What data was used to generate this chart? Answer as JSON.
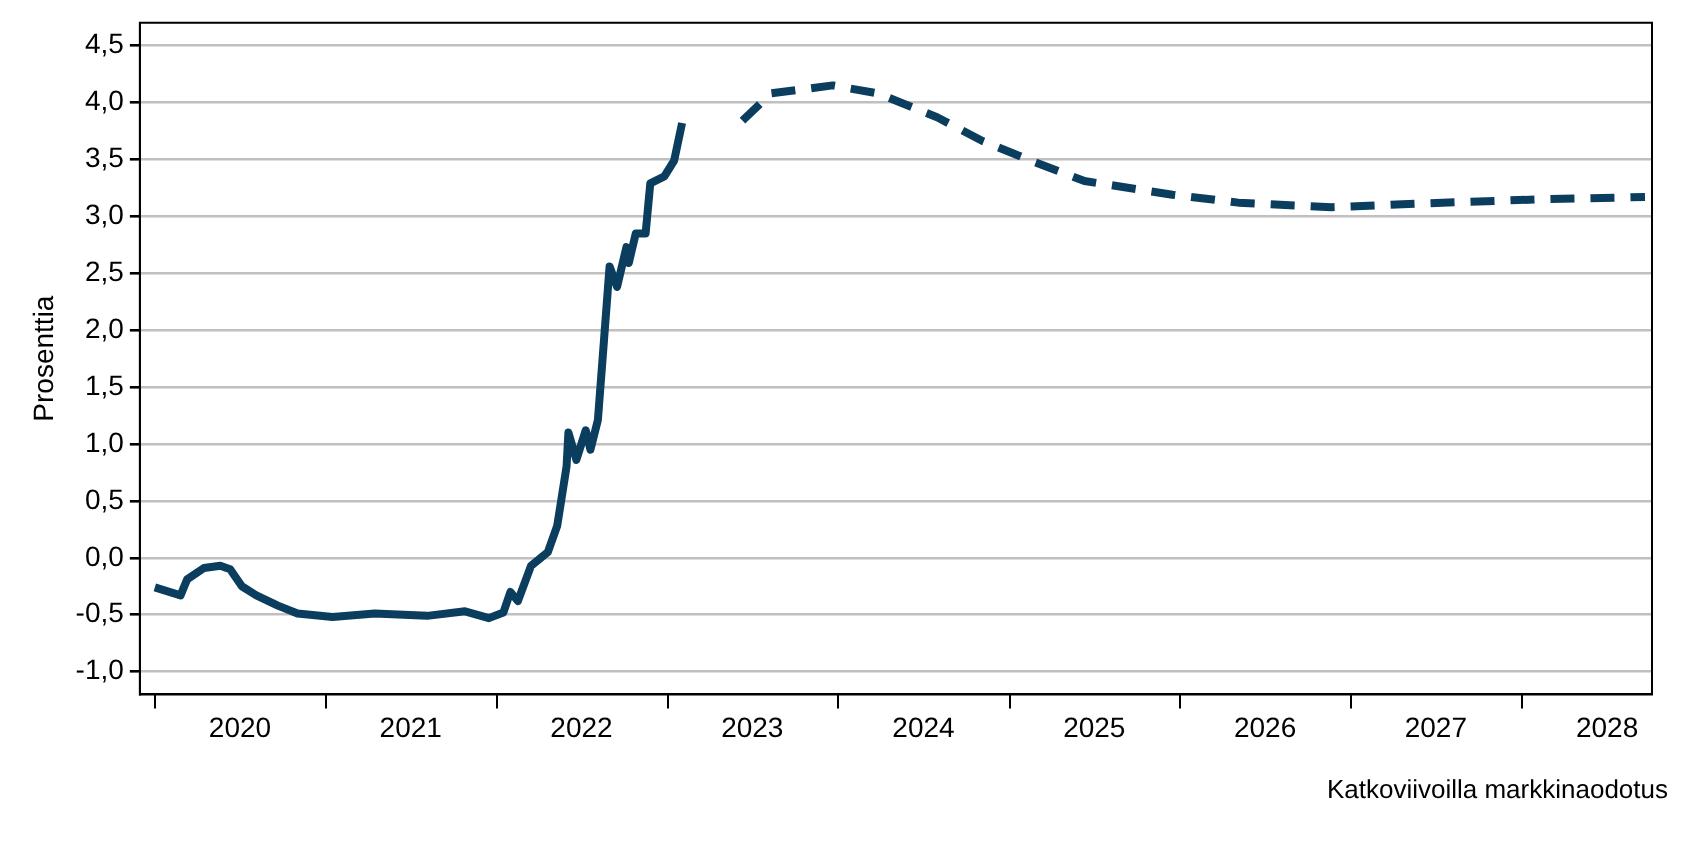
{
  "chart_data": {
    "type": "line",
    "ylabel": "Prosenttia",
    "annotations": [
      "Katkoviivoilla markkinaodotus"
    ],
    "xlim": [
      "2019-11-30",
      "2028-10-05"
    ],
    "xticks": [
      {
        "value": "2020-01-01",
        "label": null
      },
      {
        "value": "2020-07-01",
        "label": "2020"
      },
      {
        "value": "2021-01-01",
        "label": null
      },
      {
        "value": "2021-07-01",
        "label": "2021"
      },
      {
        "value": "2022-01-01",
        "label": null
      },
      {
        "value": "2022-07-01",
        "label": "2022"
      },
      {
        "value": "2023-01-01",
        "label": null
      },
      {
        "value": "2023-07-01",
        "label": "2023"
      },
      {
        "value": "2024-01-01",
        "label": null
      },
      {
        "value": "2024-07-01",
        "label": "2024"
      },
      {
        "value": "2025-01-01",
        "label": null
      },
      {
        "value": "2025-07-01",
        "label": "2025"
      },
      {
        "value": "2026-01-01",
        "label": null
      },
      {
        "value": "2026-07-01",
        "label": "2026"
      },
      {
        "value": "2027-01-01",
        "label": null
      },
      {
        "value": "2027-07-01",
        "label": "2027"
      },
      {
        "value": "2028-01-01",
        "label": null
      },
      {
        "value": "2028-07-01",
        "label": "2028"
      }
    ],
    "ylim": [
      -1.2,
      4.7
    ],
    "yticks": [
      {
        "value": -1,
        "label": "-1,0"
      },
      {
        "value": -0.5,
        "label": "-0,5"
      },
      {
        "value": 0,
        "label": "0,0"
      },
      {
        "value": 0.5,
        "label": "0,5"
      },
      {
        "value": 1,
        "label": "1,0"
      },
      {
        "value": 1.5,
        "label": "1,5"
      },
      {
        "value": 2,
        "label": "2,0"
      },
      {
        "value": 2.5,
        "label": "2,5"
      },
      {
        "value": 3,
        "label": "3,0"
      },
      {
        "value": 3.5,
        "label": "3,5"
      },
      {
        "value": 4,
        "label": "4,0"
      },
      {
        "value": 4.5,
        "label": "4,5"
      }
    ],
    "grid": "y",
    "legend": false,
    "marker": "none",
    "series": [
      {
        "color": "#0b3d5e",
        "line_style": "solid",
        "x": [
          "2020-01-01",
          "2020-02-25",
          "2020-03-10",
          "2020-04-15",
          "2020-05-20",
          "2020-06-10",
          "2020-07-05",
          "2020-08-05",
          "2020-09-20",
          "2020-11-01",
          "2021-01-15",
          "2021-04-15",
          "2021-08-05",
          "2021-10-25",
          "2021-12-15",
          "2022-01-15",
          "2022-01-30",
          "2022-02-15",
          "2022-03-15",
          "2022-04-20",
          "2022-05-10",
          "2022-05-30",
          "2022-06-03",
          "2022-06-20",
          "2022-07-10",
          "2022-07-20",
          "2022-08-05",
          "2022-08-18",
          "2022-08-30",
          "2022-09-15",
          "2022-10-05",
          "2022-10-10",
          "2022-10-25",
          "2022-11-15",
          "2022-11-25",
          "2022-12-25",
          "2023-01-15",
          "2023-02-01"
        ],
        "values": [
          -0.26,
          -0.33,
          -0.19,
          -0.09,
          -0.07,
          -0.1,
          -0.25,
          -0.33,
          -0.42,
          -0.49,
          -0.52,
          -0.49,
          -0.51,
          -0.47,
          -0.53,
          -0.48,
          -0.3,
          -0.38,
          -0.07,
          0.05,
          0.28,
          0.8,
          1.1,
          0.86,
          1.12,
          0.95,
          1.21,
          1.91,
          2.56,
          2.38,
          2.73,
          2.59,
          2.85,
          2.85,
          3.29,
          3.35,
          3.49,
          3.82
        ]
      },
      {
        "color": "#0b3d5e",
        "line_style": "dashed",
        "x": [
          "2023-06-10",
          "2023-08-10",
          "2023-12-20",
          "2024-03-25",
          "2024-07-30",
          "2024-11-05",
          "2025-02-15",
          "2025-06-10",
          "2025-12-15",
          "2026-05-05",
          "2026-11-20",
          "2027-07-15",
          "2028-02-15",
          "2028-09-20"
        ],
        "values": [
          3.84,
          4.08,
          4.15,
          4.08,
          3.87,
          3.66,
          3.49,
          3.31,
          3.19,
          3.12,
          3.08,
          3.12,
          3.15,
          3.17
        ]
      }
    ]
  }
}
